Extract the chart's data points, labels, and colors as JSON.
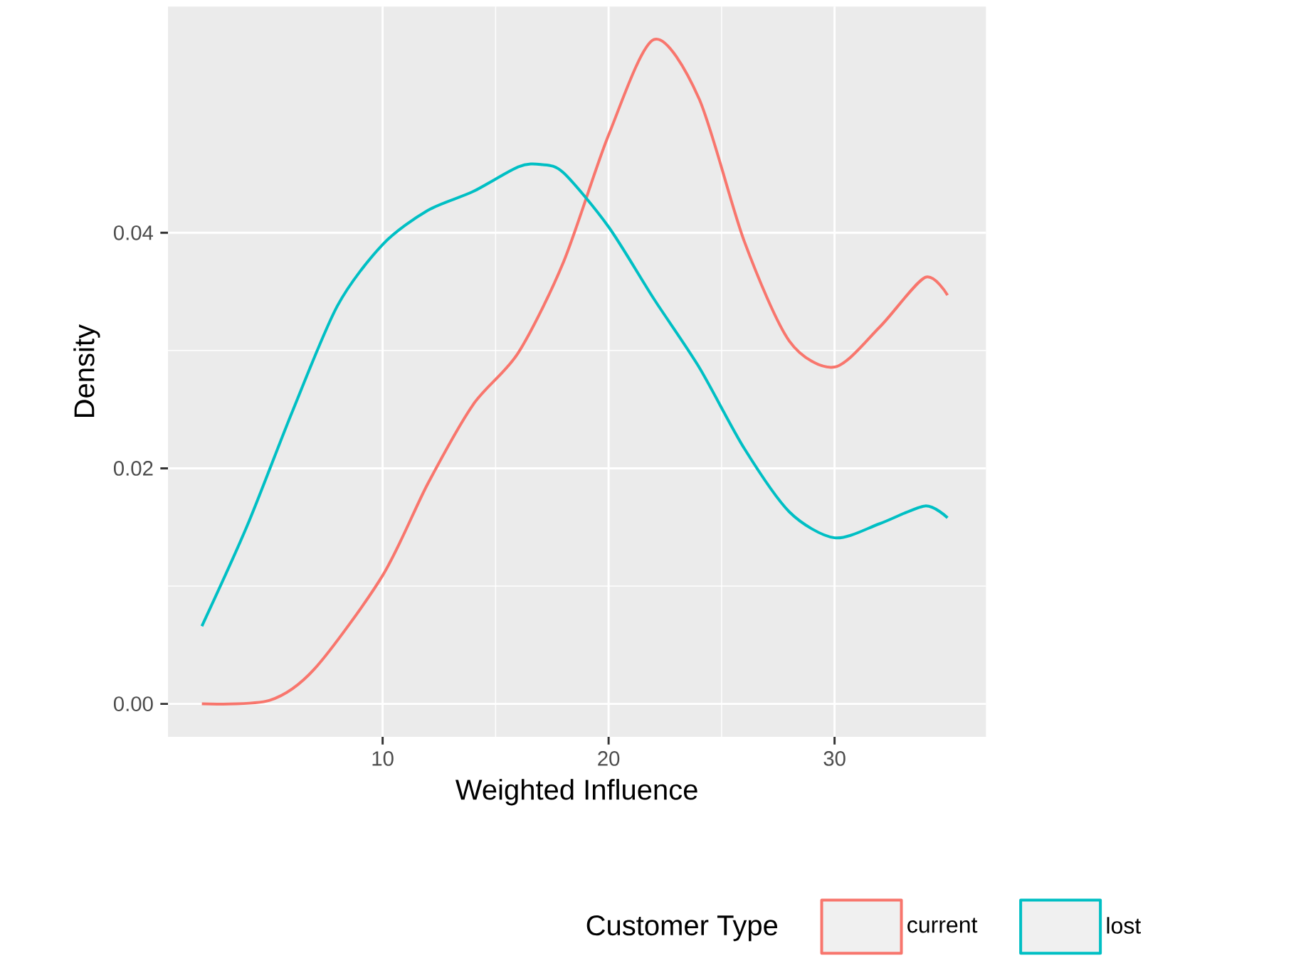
{
  "chart_data": {
    "type": "line",
    "xlabel": "Weighted Influence",
    "ylabel": "Density",
    "legend_title": "Customer Type",
    "xlim": [
      0.5,
      36.7
    ],
    "ylim": [
      -0.0028,
      0.0592
    ],
    "xticks": [
      10,
      20,
      30
    ],
    "yticks": [
      {
        "value": 0,
        "label": "0.00"
      },
      {
        "value": 0.02,
        "label": "0.02"
      },
      {
        "value": 0.04,
        "label": "0.04"
      }
    ],
    "grid": true,
    "legend": "bottom",
    "series": [
      {
        "name": "current",
        "color": "#f8766d",
        "x": [
          2,
          5,
          7,
          10,
          12,
          14,
          16,
          18,
          20,
          22,
          24,
          26,
          28,
          30,
          32,
          34,
          35
        ],
        "values": [
          0,
          0.0003,
          0.003,
          0.0109,
          0.0187,
          0.0254,
          0.0298,
          0.0375,
          0.0483,
          0.0564,
          0.0514,
          0.0393,
          0.0308,
          0.0286,
          0.032,
          0.0362,
          0.0347
        ]
      },
      {
        "name": "lost",
        "color": "#00bfc4",
        "x": [
          2,
          4,
          6,
          8,
          10,
          12,
          14,
          16,
          17,
          18,
          20,
          22,
          24,
          26,
          28,
          30,
          32,
          34,
          35
        ],
        "values": [
          0.0066,
          0.0151,
          0.0248,
          0.0338,
          0.039,
          0.0419,
          0.0435,
          0.0456,
          0.0458,
          0.0451,
          0.0405,
          0.0344,
          0.0286,
          0.0217,
          0.0163,
          0.0141,
          0.0153,
          0.0168,
          0.0158
        ]
      }
    ]
  }
}
